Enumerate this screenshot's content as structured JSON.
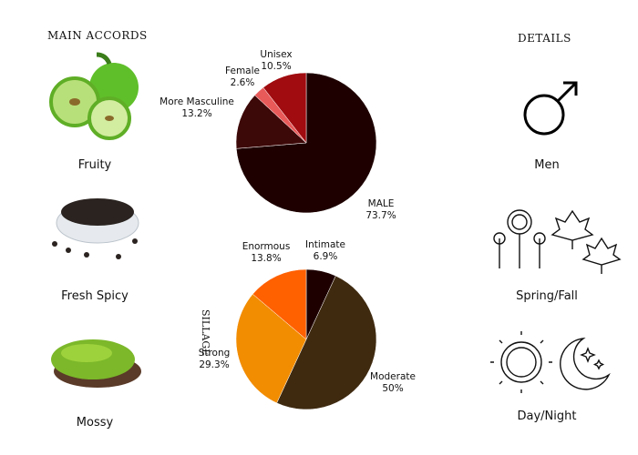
{
  "accords": {
    "title": "MAIN ACCORDS",
    "items": [
      {
        "label": "Fruity",
        "icon": "green-apple-image"
      },
      {
        "label": "Fresh Spicy",
        "icon": "peppercorn-bowl-image"
      },
      {
        "label": "Mossy",
        "icon": "moss-image"
      }
    ]
  },
  "details": {
    "title": "DETAILS",
    "items": [
      {
        "label": "Men",
        "icon": "male-symbol-icon"
      },
      {
        "label": "Spring/Fall",
        "icon": "flowers-leaves-icon"
      },
      {
        "label": "Day/Night",
        "icon": "sun-moon-icon"
      }
    ]
  },
  "chart_data": [
    {
      "type": "pie",
      "title": "",
      "slices": [
        {
          "label": "MALE",
          "value": 73.7,
          "display": "73.7%",
          "color": "#1e0000"
        },
        {
          "label": "More Masculine",
          "value": 13.2,
          "display": "13.2%",
          "color": "#3d0808"
        },
        {
          "label": "Female",
          "value": 2.6,
          "display": "2.6%",
          "color": "#e85a5a"
        },
        {
          "label": "Unisex",
          "value": 10.5,
          "display": "10.5%",
          "color": "#a00c10"
        }
      ]
    },
    {
      "type": "pie",
      "title": "SILLAGE",
      "slices": [
        {
          "label": "Intimate",
          "value": 6.9,
          "display": "6.9%",
          "color": "#1e0000"
        },
        {
          "label": "Moderate",
          "value": 50,
          "display": "50%",
          "color": "#3f2a10"
        },
        {
          "label": "Strong",
          "value": 29.3,
          "display": "29.3%",
          "color": "#f28c00"
        },
        {
          "label": "Enormous",
          "value": 13.8,
          "display": "13.8%",
          "color": "#ff6000"
        }
      ]
    }
  ]
}
